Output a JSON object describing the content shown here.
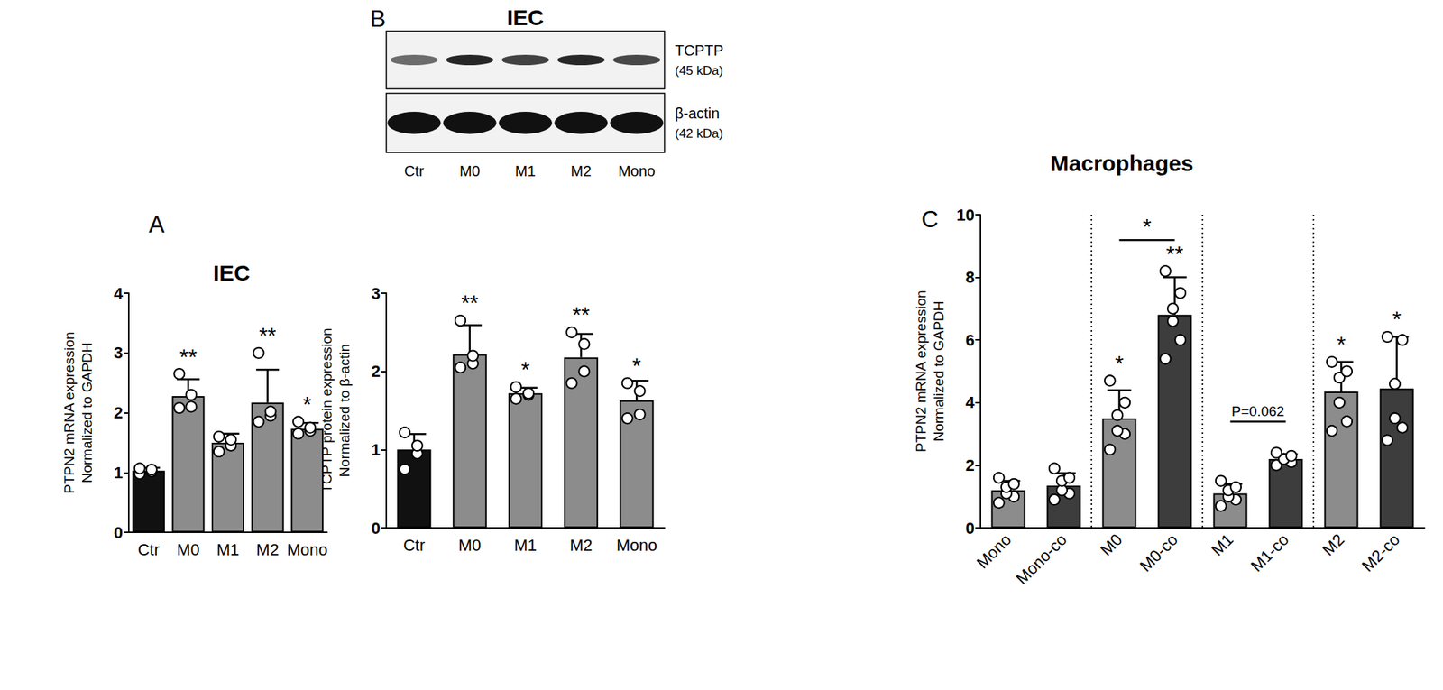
{
  "chart_data": [
    {
      "type": "bar",
      "panel": "A",
      "title": "IEC",
      "ylabel": "PTPN2 mRNA expression\nNormalized to GAPDH",
      "categories": [
        "Ctr",
        "M0",
        "M1",
        "M2",
        "Mono"
      ],
      "values": [
        1.03,
        2.28,
        1.5,
        2.17,
        1.73
      ],
      "errors": [
        0.05,
        0.28,
        0.15,
        0.55,
        0.1
      ],
      "points": [
        [
          0.98,
          1.02,
          1.05,
          1.07
        ],
        [
          2.08,
          2.1,
          2.3,
          2.65
        ],
        [
          1.35,
          1.45,
          1.55,
          1.6
        ],
        [
          1.85,
          1.95,
          2.02,
          3.0
        ],
        [
          1.65,
          1.7,
          1.75,
          1.85
        ]
      ],
      "significance": [
        null,
        "**",
        null,
        "**",
        "*"
      ],
      "colors": [
        "#111111",
        "#8c8c8c",
        "#8c8c8c",
        "#8c8c8c",
        "#8c8c8c"
      ],
      "ylim": [
        0,
        4
      ],
      "yticks": [
        0,
        1,
        2,
        3,
        4
      ],
      "grid": false
    },
    {
      "type": "bar",
      "ylabel": "TCPTP protein expression\nNormalized to β-actin",
      "categories": [
        "Ctr",
        "M0",
        "M1",
        "M2",
        "Mono"
      ],
      "values": [
        1.0,
        2.22,
        1.72,
        2.18,
        1.63
      ],
      "errors": [
        0.2,
        0.37,
        0.07,
        0.3,
        0.25
      ],
      "points": [
        [
          0.75,
          0.95,
          1.05,
          1.22
        ],
        [
          2.05,
          2.1,
          2.2,
          2.65
        ],
        [
          1.65,
          1.7,
          1.72,
          1.8
        ],
        [
          1.85,
          2.0,
          2.35,
          2.5
        ],
        [
          1.4,
          1.45,
          1.75,
          1.85
        ]
      ],
      "significance": [
        null,
        "**",
        "*",
        "**",
        "*"
      ],
      "colors": [
        "#111111",
        "#8c8c8c",
        "#8c8c8c",
        "#8c8c8c",
        "#8c8c8c"
      ],
      "ylim": [
        0,
        3
      ],
      "yticks": [
        0,
        1,
        2,
        3
      ],
      "grid": false
    },
    {
      "type": "bar",
      "panel": "C",
      "title": "Macrophages",
      "ylabel": "PTPN2 mRNA expression\nNormalized to GAPDH",
      "categories": [
        "Mono",
        "Mono-co",
        "M0",
        "M0-co",
        "M1",
        "M1-co",
        "M2",
        "M2-co"
      ],
      "values": [
        1.2,
        1.35,
        3.5,
        6.8,
        1.1,
        2.2,
        4.35,
        4.45
      ],
      "errors": [
        0.3,
        0.4,
        0.9,
        1.2,
        0.3,
        0.15,
        0.95,
        1.65
      ],
      "points": [
        [
          0.8,
          1.0,
          1.1,
          1.3,
          1.4,
          1.6
        ],
        [
          0.9,
          1.1,
          1.2,
          1.5,
          1.6,
          1.9
        ],
        [
          2.5,
          3.0,
          3.1,
          3.6,
          4.0,
          4.7
        ],
        [
          5.4,
          6.0,
          6.6,
          7.0,
          7.5,
          8.2
        ],
        [
          0.7,
          0.9,
          1.0,
          1.2,
          1.3,
          1.5
        ],
        [
          2.0,
          2.1,
          2.2,
          2.2,
          2.3,
          2.4
        ],
        [
          3.1,
          3.4,
          4.0,
          4.8,
          5.0,
          5.3
        ],
        [
          2.8,
          3.2,
          3.5,
          4.6,
          6.0,
          6.1
        ]
      ],
      "significance": [
        null,
        null,
        "*",
        "**",
        null,
        null,
        "*",
        "*"
      ],
      "colors": [
        "#8c8c8c",
        "#3d3d3d",
        "#8c8c8c",
        "#3d3d3d",
        "#8c8c8c",
        "#3d3d3d",
        "#8c8c8c",
        "#3d3d3d"
      ],
      "comparisons": [
        {
          "from": "M0",
          "to": "M0-co",
          "label": "*"
        },
        {
          "from": "M1",
          "to": "M1-co",
          "label": "P=0.062"
        }
      ],
      "ylim": [
        0,
        10
      ],
      "yticks": [
        0,
        2,
        4,
        6,
        8,
        10
      ],
      "grid": false
    }
  ],
  "blot": {
    "panel": "B",
    "title": "IEC",
    "lanes": [
      "Ctr",
      "M0",
      "M1",
      "M2",
      "Mono"
    ],
    "rows": [
      {
        "protein": "TCPTP",
        "size": "(45 kDa)"
      },
      {
        "protein": "β-actin",
        "size": "(42 kDa)"
      }
    ]
  }
}
